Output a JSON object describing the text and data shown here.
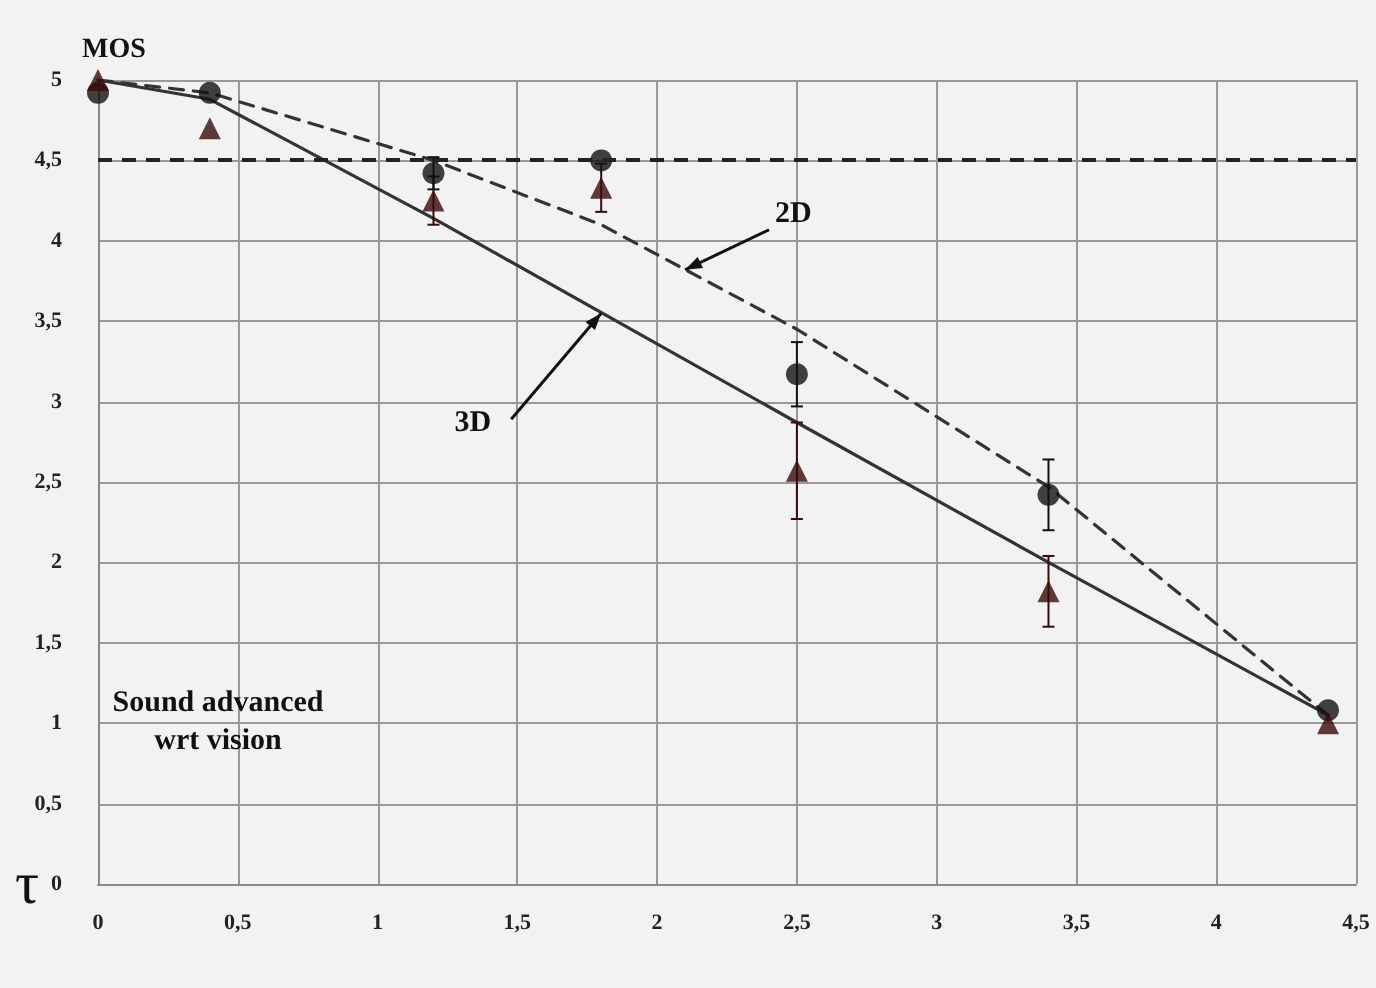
{
  "chart_data": {
    "type": "scatter",
    "ylabel": "MOS",
    "xlabel": "τ",
    "xlim": [
      0,
      4.5
    ],
    "xticks": [
      0,
      {
        "value": 0.5,
        "label": "0,5"
      },
      1,
      {
        "value": 1.5,
        "label": "1,5"
      },
      2,
      {
        "value": 2.5,
        "label": "2,5"
      },
      3,
      {
        "value": 3.5,
        "label": "3,5"
      },
      4,
      {
        "value": 4.5,
        "label": "4,5"
      }
    ],
    "ylim": [
      0,
      5
    ],
    "yticks": [
      0,
      {
        "value": 0.5,
        "label": "0,5"
      },
      1,
      {
        "value": 1.5,
        "label": "1,5"
      },
      2,
      {
        "value": 2.5,
        "label": "2,5"
      },
      3,
      {
        "value": 3.5,
        "label": "3,5"
      },
      4,
      {
        "value": 4.5,
        "label": "4,5"
      },
      5
    ],
    "grid": true,
    "series": [
      {
        "type": "line",
        "line_style": "dashed",
        "marker": "none",
        "color": "#333333",
        "x": [
          0,
          0.4,
          1.2,
          1.8,
          2.5,
          3.4,
          4.4
        ],
        "values": [
          5.0,
          4.92,
          4.5,
          4.1,
          3.45,
          2.47,
          1.05
        ]
      },
      {
        "type": "line",
        "line_style": "solid",
        "marker": "none",
        "color": "#333333",
        "x": [
          0,
          0.4,
          1.2,
          2.5,
          3.4,
          4.4
        ],
        "values": [
          5.0,
          4.88,
          4.14,
          2.87,
          2.0,
          1.05
        ]
      },
      {
        "type": "scatter",
        "marker": "triangle",
        "color": "#3a0a0a",
        "x": [
          0,
          0.4,
          1.2,
          1.8,
          2.5,
          3.4,
          4.4
        ],
        "values": [
          5.0,
          4.7,
          4.25,
          4.33,
          2.57,
          1.82,
          1.0
        ],
        "errors": [
          null,
          null,
          0.15,
          0.15,
          0.3,
          0.22,
          null
        ]
      },
      {
        "type": "scatter",
        "marker": "circle",
        "color": "#111111",
        "x": [
          0,
          0.4,
          1.2,
          1.8,
          2.5,
          3.4,
          4.4
        ],
        "values": [
          4.92,
          4.92,
          4.42,
          4.5,
          3.17,
          2.42,
          1.08
        ],
        "errors": [
          null,
          null,
          0.1,
          null,
          0.2,
          0.22,
          null
        ]
      }
    ],
    "ref_lines": [
      {
        "axis": "y",
        "value": 4.5,
        "color": "#222222",
        "line_style": "dashed"
      }
    ],
    "annotations": [
      {
        "text": "2D",
        "x": 2.1,
        "y": 3.82
      },
      {
        "text": "3D",
        "x": 1.8,
        "y": 3.55
      },
      "Sound advanced\nwrt vision"
    ]
  }
}
